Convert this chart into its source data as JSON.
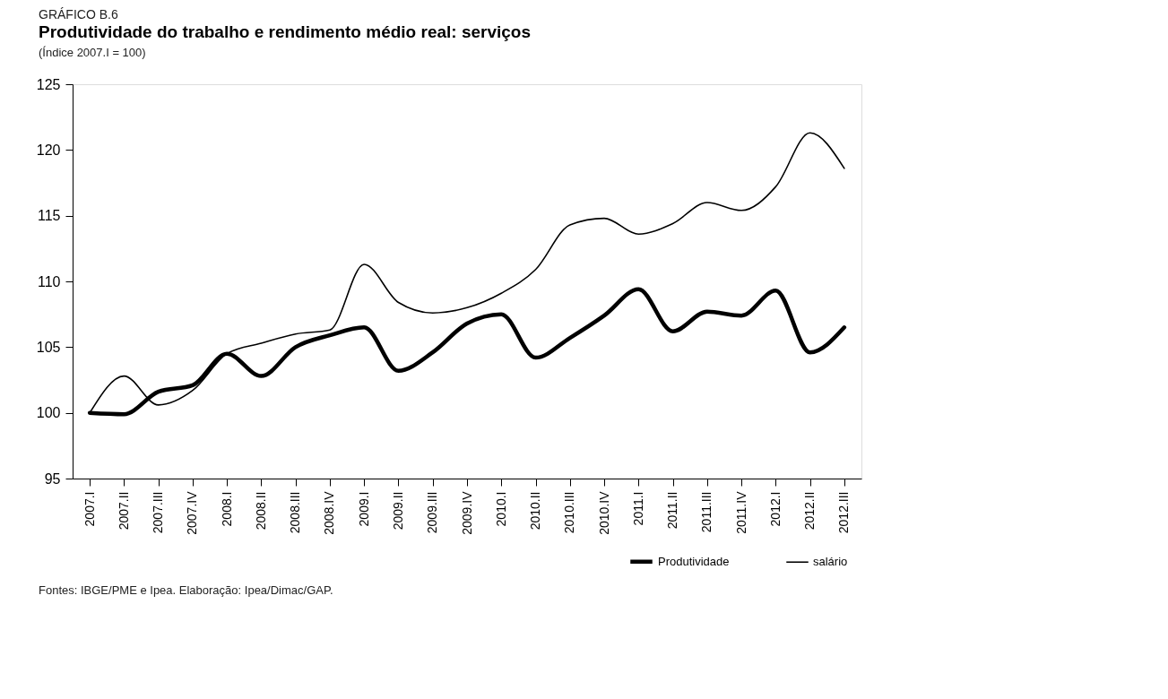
{
  "chart_data": {
    "type": "line",
    "title": "Produtividade do trabalho e rendimento médio real: serviços",
    "subtitle": "(Índice 2007.I = 100)",
    "annotations": [
      "GRÁFICO B.6",
      "Fontes: IBGE/PME e Ipea. Elaboração: Ipea/Dimac/GAP."
    ],
    "categories": [
      "2007.I",
      "2007.II",
      "2007.III",
      "2007.IV",
      "2008.I",
      "2008.II",
      "2008.III",
      "2008.IV",
      "2009.I",
      "2009.II",
      "2009.III",
      "2009.IV",
      "2010.I",
      "2010.II",
      "2010.III",
      "2010.IV",
      "2011.I",
      "2011.II",
      "2011.III",
      "2011.IV",
      "2012.I",
      "2012.II",
      "2012.III"
    ],
    "series": [
      {
        "name": "Produtividade",
        "color": "#000000",
        "values": [
          100,
          99.9,
          101.6,
          102.1,
          104.5,
          102.8,
          105.0,
          105.9,
          106.5,
          103.2,
          104.6,
          106.8,
          107.5,
          104.2,
          105.7,
          107.4,
          109.4,
          106.2,
          107.7,
          107.4,
          109.3,
          104.6,
          106.5
        ]
      },
      {
        "name": "salário",
        "color": "#000000",
        "values": [
          100,
          102.8,
          100.6,
          101.7,
          104.5,
          105.3,
          106.0,
          106.3,
          111.3,
          108.4,
          107.6,
          108.0,
          109.1,
          110.9,
          114.3,
          114.8,
          113.6,
          114.4,
          116.0,
          115.4,
          117.2,
          121.3,
          118.6
        ]
      }
    ],
    "ylim": [
      95,
      125
    ],
    "yticks": [
      95,
      100,
      105,
      110,
      115,
      120,
      125
    ],
    "grid": false,
    "legend": "bottom right",
    "marker": "none",
    "line_style": "solid"
  }
}
